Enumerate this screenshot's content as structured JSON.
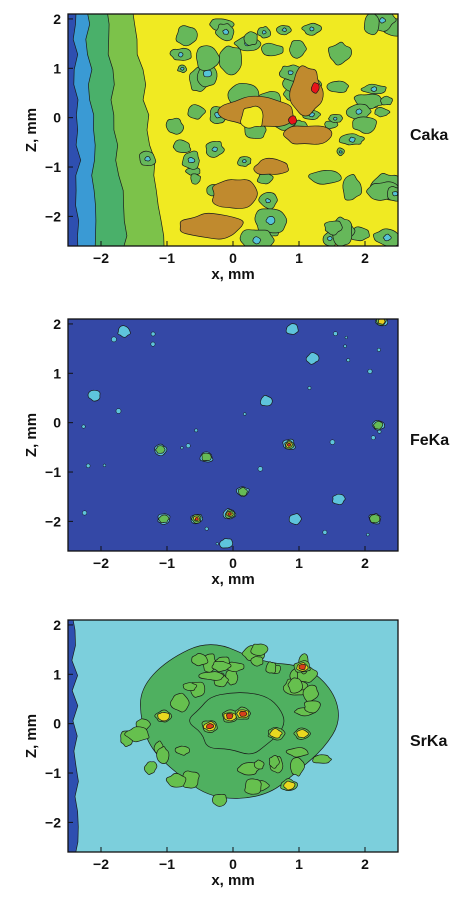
{
  "chart_data": [
    {
      "type": "heatmap",
      "element_label": "Caka",
      "xlabel": "x, mm",
      "ylabel": "Z, mm",
      "xlim": [
        -2.5,
        2.5
      ],
      "ylim": [
        -2.6,
        2.1
      ],
      "x_ticks": [
        "−2",
        "−1",
        "0",
        "1",
        "2"
      ],
      "y_ticks": [
        "2",
        "1",
        "0",
        "−1",
        "−2"
      ],
      "x_tick_values": [
        -2,
        -1,
        0,
        1,
        2
      ],
      "y_tick_values": [
        2,
        1,
        0,
        -1,
        -2
      ],
      "colors": {
        "background": "#f0ea22",
        "edge_band_1": "#2e4fb0",
        "edge_band_2": "#3a9ad4",
        "edge_band_3": "#4ab06a",
        "edge_band_4": "#7cc24a",
        "blob_low": "#66b85a",
        "spot": "#55c4d8",
        "high": "#c08a2e",
        "peak": "#e8141a"
      },
      "high_regions": [
        {
          "x": 0.35,
          "z": 0.1,
          "rx": 0.55,
          "rz": 0.32
        },
        {
          "x": 1.1,
          "z": 0.55,
          "rx": 0.25,
          "rz": 0.5
        },
        {
          "x": 0.0,
          "z": -1.55,
          "rx": 0.35,
          "rz": 0.35
        },
        {
          "x": 1.15,
          "z": -0.35,
          "rx": 0.35,
          "rz": 0.22
        },
        {
          "x": -0.3,
          "z": -2.2,
          "rx": 0.5,
          "rz": 0.25
        },
        {
          "x": 0.6,
          "z": -1.0,
          "rx": 0.28,
          "rz": 0.18
        }
      ],
      "peaks": [
        {
          "x": 0.9,
          "z": -0.05
        },
        {
          "x": 1.25,
          "z": 0.6
        }
      ]
    },
    {
      "type": "heatmap",
      "element_label": "FeKa",
      "xlabel": "x, mm",
      "ylabel": "Z, mm",
      "xlim": [
        -2.5,
        2.5
      ],
      "ylim": [
        -2.6,
        2.1
      ],
      "x_ticks": [
        "−2",
        "−1",
        "0",
        "1",
        "2"
      ],
      "y_ticks": [
        "2",
        "1",
        "0",
        "−1",
        "−2"
      ],
      "x_tick_values": [
        -2,
        -1,
        0,
        1,
        2
      ],
      "y_tick_values": [
        2,
        1,
        0,
        -1,
        -2
      ],
      "colors": {
        "background": "#3448a6",
        "spot": "#5ec4dc",
        "mid": "#66bb55",
        "high": "#e8d020",
        "peak": "#e03020"
      },
      "spots": [
        {
          "x": -1.65,
          "z": 1.85,
          "level": 1
        },
        {
          "x": 0.9,
          "z": 1.9,
          "level": 1
        },
        {
          "x": 2.25,
          "z": 2.05,
          "level": 3
        },
        {
          "x": -2.1,
          "z": 0.55,
          "level": 1
        },
        {
          "x": -1.1,
          "z": -0.55,
          "level": 2
        },
        {
          "x": -0.4,
          "z": -0.7,
          "level": 2
        },
        {
          "x": 0.85,
          "z": -0.45,
          "level": 4
        },
        {
          "x": 2.2,
          "z": -0.05,
          "level": 2
        },
        {
          "x": 0.15,
          "z": -1.4,
          "level": 2
        },
        {
          "x": -1.05,
          "z": -1.95,
          "level": 2
        },
        {
          "x": -0.55,
          "z": -1.95,
          "level": 4
        },
        {
          "x": -0.05,
          "z": -1.85,
          "level": 4
        },
        {
          "x": 0.95,
          "z": -1.95,
          "level": 1
        },
        {
          "x": 2.15,
          "z": -1.95,
          "level": 2
        },
        {
          "x": 1.6,
          "z": -1.55,
          "level": 1
        },
        {
          "x": 0.5,
          "z": 0.45,
          "level": 1
        },
        {
          "x": -0.1,
          "z": -2.45,
          "level": 1
        },
        {
          "x": 1.2,
          "z": 1.3,
          "level": 1
        }
      ]
    },
    {
      "type": "heatmap",
      "element_label": "SrKa",
      "xlabel": "x, mm",
      "ylabel": "Z, mm",
      "xlim": [
        -2.5,
        2.5
      ],
      "ylim": [
        -2.6,
        2.1
      ],
      "x_ticks": [
        "−2",
        "−1",
        "0",
        "1",
        "2"
      ],
      "y_ticks": [
        "2",
        "1",
        "0",
        "−1",
        "−2"
      ],
      "x_tick_values": [
        -2,
        -1,
        0,
        1,
        2
      ],
      "y_tick_values": [
        2,
        1,
        0,
        -1,
        -2
      ],
      "colors": {
        "background": "#7ccfdc",
        "edge_dark": "#2e4fb0",
        "ring": "#4fb060",
        "ring_inner": "#66c04e",
        "high": "#e8d820",
        "peak": "#d8401a"
      },
      "ring": {
        "x": 0.1,
        "z": 0.05,
        "rx": 1.75,
        "rz": 1.55
      },
      "hotspots": [
        {
          "x": -0.35,
          "z": -0.05,
          "level": 3
        },
        {
          "x": -0.05,
          "z": 0.15,
          "level": 3
        },
        {
          "x": 0.15,
          "z": 0.2,
          "level": 3
        },
        {
          "x": 0.65,
          "z": -0.2,
          "level": 2
        },
        {
          "x": 1.05,
          "z": 1.15,
          "level": 3
        },
        {
          "x": -1.05,
          "z": 0.15,
          "level": 2
        },
        {
          "x": 1.05,
          "z": -0.2,
          "level": 2
        },
        {
          "x": 0.85,
          "z": -1.25,
          "level": 2
        },
        {
          "x": -0.2,
          "z": -1.55,
          "level": 1
        },
        {
          "x": 0.4,
          "z": 1.5,
          "level": 1
        },
        {
          "x": -0.5,
          "z": 1.3,
          "level": 1
        },
        {
          "x": 1.2,
          "z": 0.35,
          "level": 1
        }
      ]
    }
  ]
}
